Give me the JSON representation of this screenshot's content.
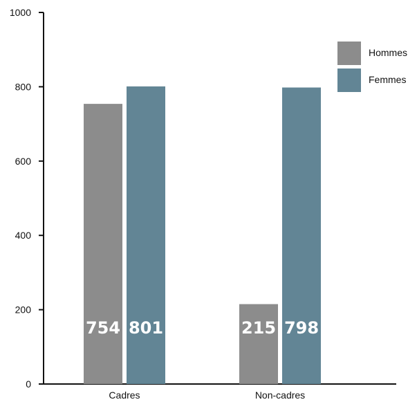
{
  "chart_data": {
    "type": "bar",
    "categories": [
      "Cadres",
      "Non-cadres"
    ],
    "series": [
      {
        "name": "Hommes",
        "values": [
          754,
          215
        ],
        "color": "#8c8c8c"
      },
      {
        "name": "Femmes",
        "values": [
          801,
          798
        ],
        "color": "#628595"
      }
    ],
    "data_labels": [
      [
        "754",
        "215"
      ],
      [
        "801",
        "798"
      ]
    ],
    "ylim": [
      0,
      1000
    ],
    "yticks": [
      0,
      200,
      400,
      600,
      800,
      1000
    ],
    "ytick_labels": [
      "0",
      "200",
      "400",
      "600",
      "800",
      "1000"
    ],
    "legend_position": "top-right",
    "grid": false,
    "title": "",
    "xlabel": "",
    "ylabel": ""
  }
}
